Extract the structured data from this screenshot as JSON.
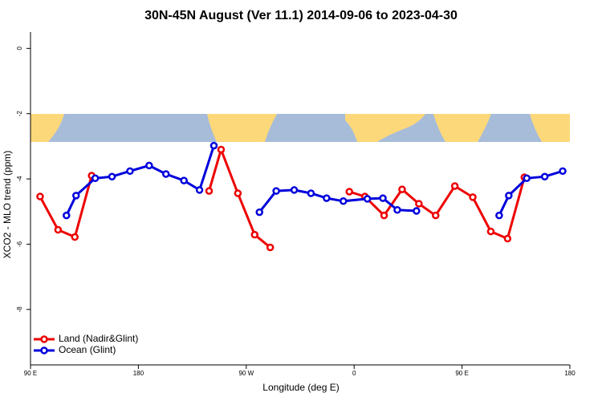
{
  "chart_data": {
    "type": "line",
    "title": "30N-45N August (Ver 11.1)   2014-09-06 to 2023-04-30",
    "x_label": "Longitude (deg E)",
    "y_label": "XCO2 - MLO trend (ppm)",
    "xlim": [
      90,
      540
    ],
    "xticks": [
      {
        "value": 90,
        "label": "90 E"
      },
      {
        "value": 180,
        "label": "180"
      },
      {
        "value": 270,
        "label": "90 W"
      },
      {
        "value": 360,
        "label": "0"
      },
      {
        "value": 450,
        "label": "90 E"
      },
      {
        "value": 540,
        "label": "180"
      }
    ],
    "ylim": [
      -9.7,
      0.5
    ],
    "yticks": [
      0,
      -2,
      -4,
      -6,
      -8
    ],
    "legend": "bottom-left",
    "series": [
      {
        "name": "Land (Nadir&Glint)",
        "color": "#ee0000",
        "x": [
          98,
          113,
          127,
          141,
          null,
          239,
          249,
          263,
          277,
          290,
          null,
          356,
          369,
          385,
          400,
          414,
          428,
          444,
          459,
          474,
          488,
          502
        ],
        "values": [
          -4.54,
          -5.56,
          -5.78,
          -3.9,
          null,
          -4.37,
          -3.1,
          -4.44,
          -5.71,
          -6.1,
          null,
          -4.39,
          -4.54,
          -5.12,
          -4.32,
          -4.76,
          -5.12,
          -4.22,
          -4.56,
          -5.61,
          -5.83,
          -3.95
        ]
      },
      {
        "name": "Ocean (Glint)",
        "color": "#0000dd",
        "x": [
          120,
          128,
          144,
          158,
          173,
          189,
          203,
          218,
          231,
          243,
          null,
          281,
          295,
          310,
          324,
          337,
          351,
          371,
          384,
          396,
          412,
          null,
          481,
          489,
          504,
          519,
          534
        ],
        "values": [
          -5.12,
          -4.51,
          -3.98,
          -3.93,
          -3.76,
          -3.59,
          -3.85,
          -4.05,
          -4.34,
          -2.98,
          null,
          -5.02,
          -4.37,
          -4.34,
          -4.44,
          -4.59,
          -4.68,
          -4.61,
          -4.59,
          -4.95,
          -4.98,
          null,
          -5.12,
          -4.51,
          -3.98,
          -3.93,
          -3.76
        ]
      }
    ]
  }
}
